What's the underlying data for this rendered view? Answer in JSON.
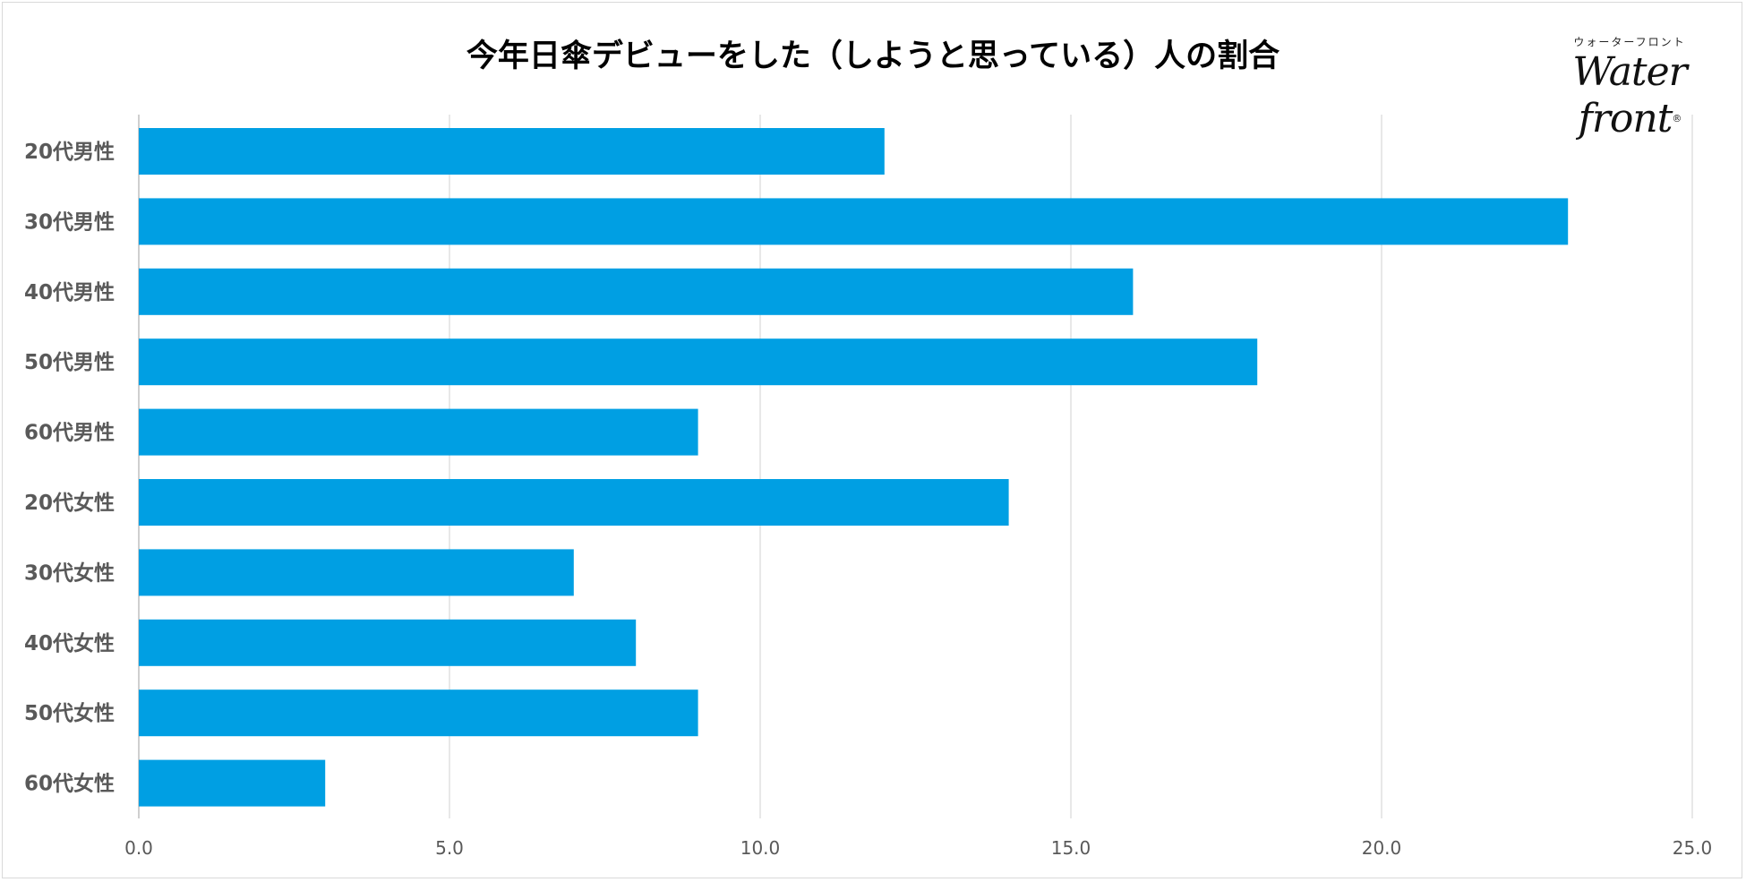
{
  "chart_data": {
    "type": "bar",
    "orientation": "horizontal",
    "title": "今年日傘デビューをした（しようと思っている）人の割合",
    "categories": [
      "20代男性",
      "30代男性",
      "40代男性",
      "50代男性",
      "60代男性",
      "20代女性",
      "30代女性",
      "40代女性",
      "50代女性",
      "60代女性"
    ],
    "values": [
      12,
      23,
      16,
      18,
      9,
      14,
      7,
      8,
      9,
      3
    ],
    "xlim": [
      0,
      25
    ],
    "xticks": [
      "0.0",
      "5.0",
      "10.0",
      "15.0",
      "20.0",
      "25.0"
    ],
    "xlabel": "",
    "ylabel": "",
    "grid": "vertical",
    "bar_color": "#009fe3"
  },
  "logo": {
    "kana": "ウォーターフロント",
    "name": "Water front",
    "mark": "®"
  }
}
